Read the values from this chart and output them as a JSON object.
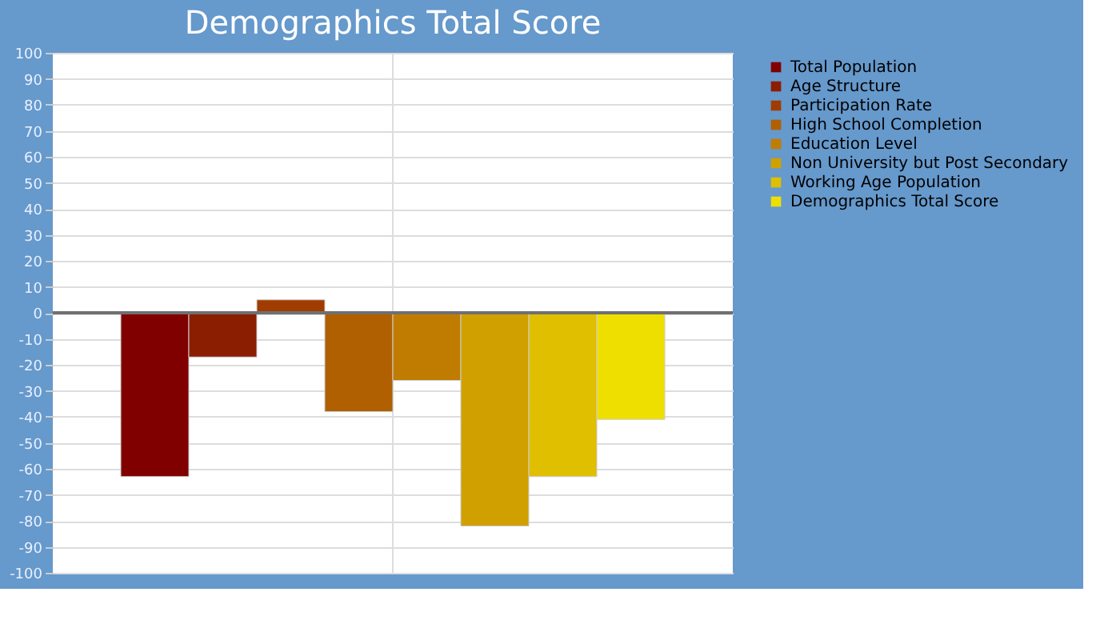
{
  "chart_data": {
    "type": "bar",
    "title": "Demographics Total Score",
    "categories": [
      null
    ],
    "series": [
      {
        "name": "Total Population",
        "color": "#800000",
        "values": [
          -63
        ]
      },
      {
        "name": "Age Structure",
        "color": "#8b1e00",
        "values": [
          -17
        ]
      },
      {
        "name": "Participation Rate",
        "color": "#a03c00",
        "values": [
          5
        ]
      },
      {
        "name": "High School Completion",
        "color": "#b06000",
        "values": [
          -38
        ]
      },
      {
        "name": "Education Level",
        "color": "#c07c00",
        "values": [
          -26
        ]
      },
      {
        "name": "Non University but Post Secondary",
        "color": "#d0a000",
        "values": [
          -82
        ]
      },
      {
        "name": "Working Age Population",
        "color": "#e0be00",
        "values": [
          -63
        ]
      },
      {
        "name": "Demographics Total Score",
        "color": "#eedf00",
        "values": [
          -41
        ]
      }
    ],
    "ylim": [
      -100,
      100
    ],
    "yticks": [
      -100,
      -90,
      -80,
      -70,
      -60,
      -50,
      -40,
      -30,
      -20,
      -10,
      0,
      10,
      20,
      30,
      40,
      50,
      60,
      70,
      80,
      90,
      100
    ],
    "grid": true,
    "legend": "right",
    "tick_labels": "y"
  }
}
